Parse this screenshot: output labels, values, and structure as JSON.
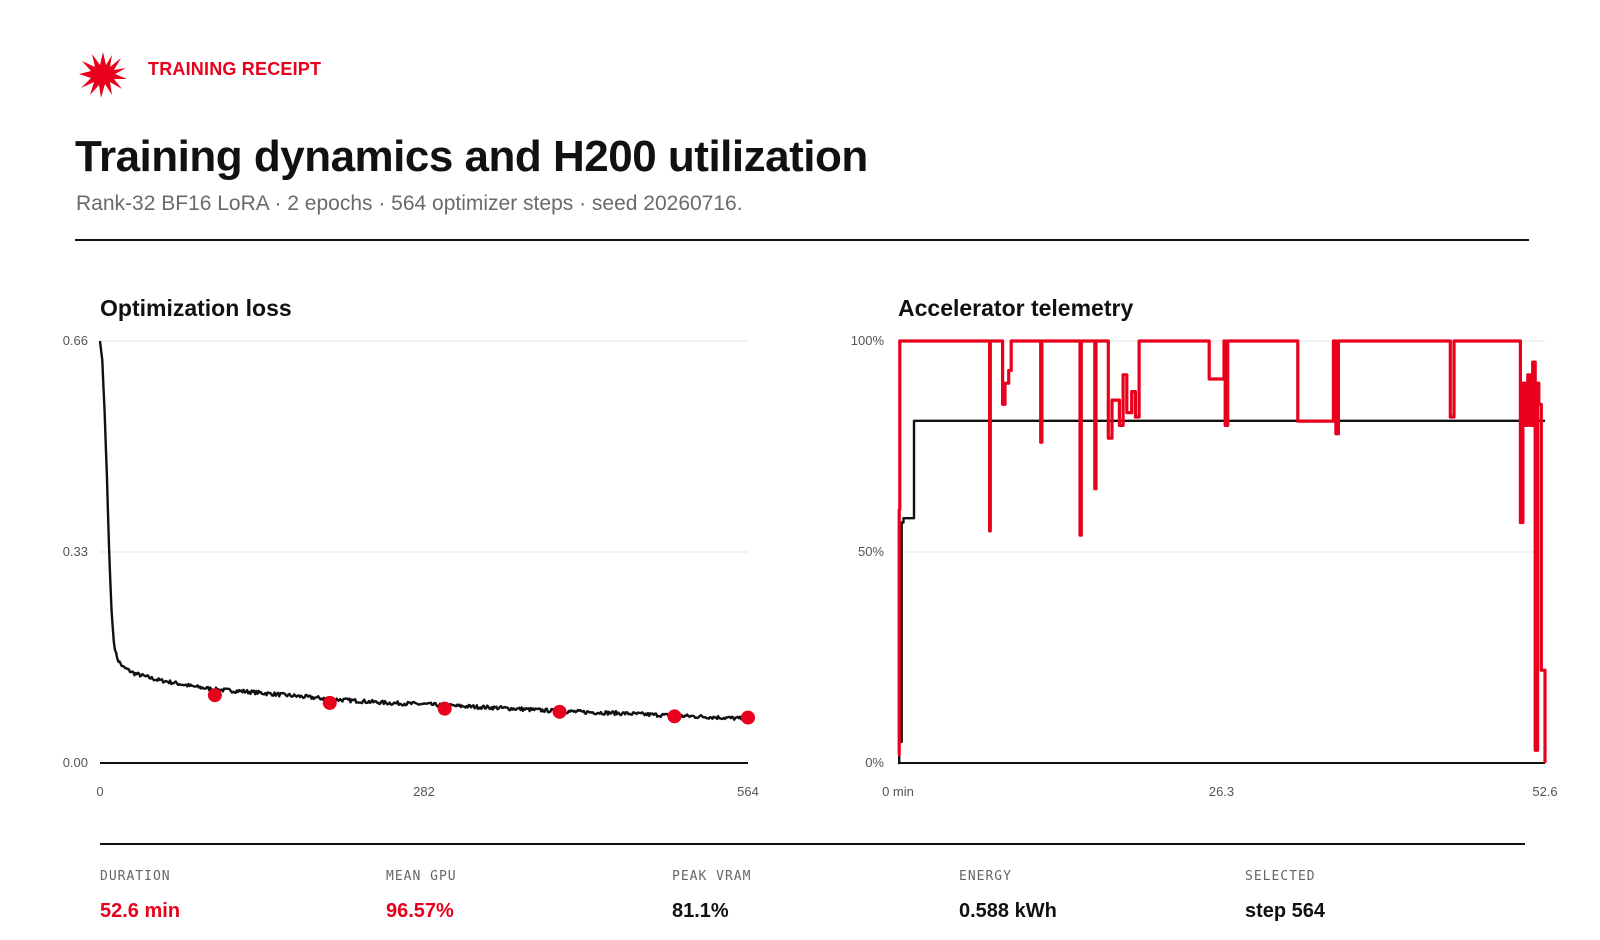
{
  "header": {
    "brand_label": "TRAINING RECEIPT",
    "title": "Training dynamics and H200 utilization",
    "subtitle": "Rank-32 BF16 LoRA · 2 epochs · 564 optimizer steps · seed 20260716."
  },
  "colors": {
    "accent": "#e8001c",
    "ink": "#111111",
    "grid": "#e4e4e4",
    "muted": "#6a6a6a"
  },
  "icons": {
    "brand": "starburst-icon"
  },
  "chart_data": [
    {
      "type": "line",
      "title": "Optimization loss",
      "xlabel": "",
      "ylabel": "",
      "xlim": [
        0,
        564
      ],
      "ylim": [
        0,
        0.66
      ],
      "x_ticks": [
        "0",
        "282",
        "564"
      ],
      "y_ticks": [
        "0.00",
        "0.33",
        "0.66"
      ],
      "grid": true,
      "series": [
        {
          "color": "#111111",
          "noisy": true,
          "x": [
            0,
            2,
            4,
            6,
            8,
            10,
            12,
            14,
            16,
            20,
            25,
            30,
            40,
            50,
            60,
            80,
            100,
            125,
            150,
            200,
            250,
            282,
            300,
            350,
            400,
            450,
            500,
            530,
            564
          ],
          "y": [
            0.66,
            0.63,
            0.55,
            0.45,
            0.33,
            0.24,
            0.19,
            0.17,
            0.16,
            0.15,
            0.145,
            0.14,
            0.135,
            0.13,
            0.127,
            0.12,
            0.115,
            0.112,
            0.108,
            0.1,
            0.094,
            0.092,
            0.09,
            0.086,
            0.081,
            0.078,
            0.074,
            0.072,
            0.069
          ]
        },
        {
          "type": "scatter",
          "color": "#e8001c",
          "x": [
            100,
            200,
            300,
            400,
            500,
            564
          ],
          "y": [
            0.106,
            0.094,
            0.085,
            0.08,
            0.073,
            0.071
          ]
        }
      ]
    },
    {
      "type": "line",
      "title": "Accelerator telemetry",
      "xlabel": "",
      "ylabel": "",
      "xlim": [
        0,
        52.6
      ],
      "ylim": [
        0,
        100
      ],
      "x_ticks": [
        "0 min",
        "26.3",
        "52.6"
      ],
      "y_ticks": [
        "0%",
        "50%",
        "100%"
      ],
      "grid": true,
      "series": [
        {
          "color": "#111111",
          "x": [
            0,
            0.1,
            0.3,
            0.45,
            1.2,
            1.3,
            52.0,
            52.6
          ],
          "y": [
            0,
            5,
            57,
            58,
            58,
            81.1,
            81.1,
            81.1
          ]
        },
        {
          "color": "#e8001c",
          "x": [
            0,
            0.1,
            0.15,
            0.3,
            0.5,
            7.4,
            7.45,
            7.5,
            8.3,
            8.5,
            8.7,
            9.0,
            9.2,
            9.4,
            10.5,
            11.5,
            11.6,
            11.7,
            14.7,
            14.8,
            14.9,
            15.9,
            16.0,
            16.1,
            17.0,
            17.1,
            17.4,
            18.0,
            18.3,
            18.6,
            19.0,
            19.3,
            19.6,
            20.1,
            20.3,
            25.3,
            26.5,
            26.6,
            26.8,
            32.4,
            32.5,
            35.4,
            35.6,
            35.8,
            44.8,
            44.9,
            45.2,
            50.5,
            50.6,
            50.8,
            51.0,
            51.2,
            51.4,
            51.6,
            51.8,
            52.0,
            52.1,
            52.3,
            52.6
          ],
          "y": [
            2,
            60,
            100,
            100,
            100,
            100,
            55,
            100,
            100,
            85,
            90,
            93,
            100,
            100,
            100,
            100,
            76,
            100,
            100,
            54,
            100,
            100,
            65,
            100,
            100,
            77,
            86,
            80,
            92,
            83,
            88,
            82,
            100,
            100,
            100,
            91,
            100,
            80,
            100,
            100,
            81,
            100,
            78,
            100,
            100,
            82,
            100,
            100,
            57,
            90,
            80,
            92,
            80,
            95,
            3,
            90,
            85,
            22,
            0
          ]
        }
      ]
    }
  ],
  "stats": {
    "duration": {
      "label": "DURATION",
      "value": "52.6 min"
    },
    "mean_gpu": {
      "label": "MEAN GPU",
      "value": "96.57%"
    },
    "peak_vram": {
      "label": "PEAK VRAM",
      "value": "81.1%"
    },
    "energy": {
      "label": "ENERGY",
      "value": "0.588 kWh"
    },
    "selected": {
      "label": "SELECTED",
      "value": "step 564"
    }
  }
}
